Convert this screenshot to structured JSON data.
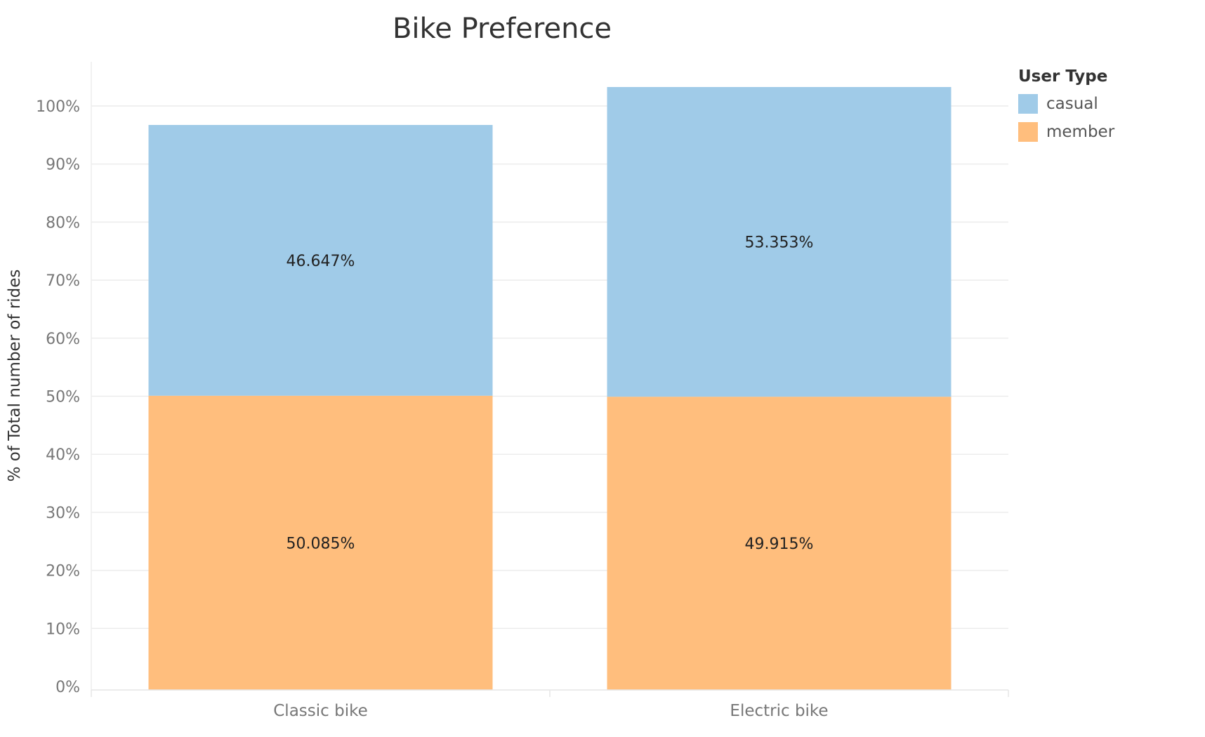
{
  "chart_data": {
    "type": "bar",
    "stacked": true,
    "title": "Bike Preference",
    "xlabel": "",
    "ylabel": "% of Total number of rides",
    "categories": [
      "Classic bike",
      "Electric bike"
    ],
    "series": [
      {
        "name": "member",
        "values": [
          50.085,
          49.915
        ],
        "labels": [
          "50.085%",
          "49.915%"
        ],
        "color": "#FFBE7D"
      },
      {
        "name": "casual",
        "values": [
          46.647,
          53.353
        ],
        "labels": [
          "46.647%",
          "53.353%"
        ],
        "color": "#A0CBE8"
      }
    ],
    "yticks": [
      0,
      10,
      20,
      30,
      40,
      50,
      60,
      70,
      80,
      90,
      100
    ],
    "ytick_labels": [
      "0%",
      "10%",
      "20%",
      "30%",
      "40%",
      "50%",
      "60%",
      "70%",
      "80%",
      "90%",
      "100%"
    ],
    "ylim": [
      0,
      104
    ],
    "grid": true,
    "legend": {
      "title": "User Type",
      "position": "top-right",
      "items": [
        {
          "label": "casual",
          "color": "#A0CBE8"
        },
        {
          "label": "member",
          "color": "#FFBE7D"
        }
      ]
    }
  }
}
